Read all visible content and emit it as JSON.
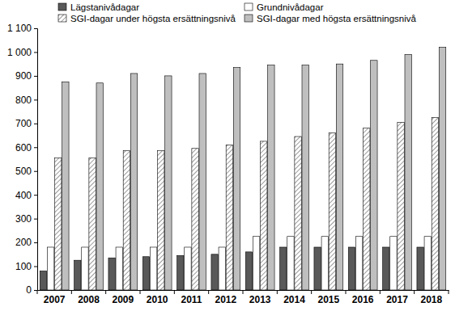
{
  "chart_data": {
    "type": "bar",
    "categories": [
      "2007",
      "2008",
      "2009",
      "2010",
      "2011",
      "2012",
      "2013",
      "2014",
      "2015",
      "2016",
      "2017",
      "2018"
    ],
    "series": [
      {
        "name": "Lägstanivådagar",
        "color": "#595959",
        "values": [
          80,
          125,
          135,
          140,
          145,
          150,
          160,
          180,
          180,
          180,
          180,
          180
        ]
      },
      {
        "name": "Grundnivådagar",
        "color": "#ffffff",
        "values": [
          180,
          180,
          180,
          180,
          180,
          180,
          225,
          225,
          225,
          225,
          225,
          225
        ]
      },
      {
        "name": "SGI-dagar under högsta ersättningsnivå",
        "color": "#808080",
        "values": [
          555,
          555,
          585,
          585,
          595,
          610,
          625,
          645,
          660,
          680,
          705,
          725
        ]
      },
      {
        "name": "SGI-dagar med högsta ersättningsnivå",
        "color": "#bfbfbf",
        "values": [
          875,
          870,
          910,
          900,
          910,
          935,
          945,
          945,
          950,
          965,
          990,
          1020
        ]
      }
    ],
    "ylim": [
      0,
      1100
    ],
    "yticks": [
      0,
      100,
      200,
      300,
      400,
      500,
      600,
      700,
      800,
      900,
      {
        "value": 1000,
        "label": "1 000"
      },
      {
        "value": 1100,
        "label": "1 100"
      }
    ],
    "grid": false,
    "legend": "top"
  }
}
